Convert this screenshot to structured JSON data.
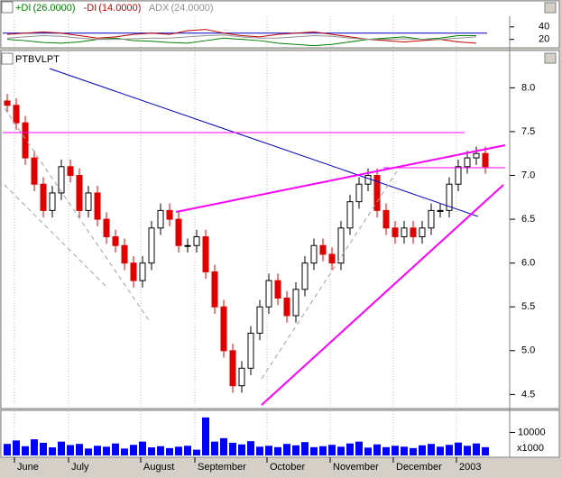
{
  "chart_data": {
    "type": "candlestick",
    "indicator": {
      "labels": [
        {
          "text": "+DI",
          "value_label": "(26.0000)"
        },
        {
          "text": "-DI",
          "value_label": "(14.0000)"
        },
        {
          "text": "ADX",
          "value_label": "(24.0000)"
        }
      ],
      "ylim": [
        8,
        57
      ],
      "yticks": [
        40,
        20
      ],
      "reference_line": 30,
      "series": [
        {
          "name": "+DI",
          "color": "#008000",
          "values": [
            20,
            18,
            15,
            14,
            16,
            20,
            22,
            18,
            17,
            15,
            14,
            18,
            22,
            20,
            18,
            14,
            12,
            10,
            12,
            16,
            20,
            22,
            24,
            20,
            22,
            26,
            26
          ]
        },
        {
          "name": "-DI",
          "color": "#c00000",
          "values": [
            28,
            30,
            32,
            30,
            26,
            22,
            24,
            28,
            30,
            28,
            34,
            36,
            30,
            26,
            24,
            28,
            30,
            32,
            28,
            24,
            20,
            18,
            16,
            18,
            20,
            16,
            14
          ]
        },
        {
          "name": "ADX",
          "color": "#909090",
          "values": [
            22,
            24,
            26,
            25,
            22,
            20,
            20,
            21,
            22,
            22,
            24,
            26,
            27,
            24,
            22,
            22,
            24,
            26,
            25,
            22,
            20,
            20,
            21,
            20,
            20,
            22,
            24
          ]
        }
      ]
    },
    "price": {
      "title": "PTBVLPT",
      "ylim": [
        4.35,
        8.23
      ],
      "yticks": [
        {
          "value": 8,
          "label": "8.0"
        },
        7.5,
        {
          "value": 7,
          "label": "7.0"
        },
        6.5,
        {
          "value": 6,
          "label": "6.0"
        },
        5.5,
        {
          "value": 5,
          "label": "5.0"
        },
        4.5
      ],
      "up_color": "#000000",
      "down_color": "#e00000",
      "open": [
        7.85,
        7.8,
        7.6,
        7.2,
        6.9,
        6.6,
        6.8,
        7.1,
        7.0,
        6.6,
        6.8,
        6.5,
        6.3,
        6.2,
        6.0,
        5.8,
        6.0,
        6.4,
        6.6,
        6.5,
        6.2,
        6.2,
        6.3,
        5.9,
        5.5,
        5.0,
        4.6,
        4.8,
        5.2,
        5.5,
        5.8,
        5.6,
        5.4,
        5.7,
        6.0,
        6.2,
        6.1,
        6.0,
        6.4,
        6.7,
        6.9,
        7.0,
        6.6,
        6.4,
        6.3,
        6.4,
        6.3,
        6.4,
        6.6,
        6.6,
        6.9,
        7.1,
        7.2,
        7.25
      ],
      "high": [
        7.93,
        7.88,
        7.68,
        7.28,
        6.98,
        6.88,
        7.18,
        7.18,
        7.08,
        6.88,
        6.88,
        6.58,
        6.38,
        6.28,
        6.08,
        6.08,
        6.48,
        6.68,
        6.68,
        6.58,
        6.28,
        6.38,
        6.38,
        5.98,
        5.58,
        5.08,
        4.88,
        5.28,
        5.58,
        5.88,
        5.88,
        5.68,
        5.78,
        6.08,
        6.28,
        6.28,
        6.18,
        6.48,
        6.78,
        6.98,
        7.08,
        7.08,
        6.68,
        6.48,
        6.48,
        6.48,
        6.48,
        6.68,
        6.68,
        6.98,
        7.18,
        7.28,
        7.33,
        7.33
      ],
      "low": [
        7.72,
        7.52,
        7.12,
        6.82,
        6.52,
        6.52,
        6.72,
        6.92,
        6.52,
        6.52,
        6.42,
        6.22,
        6.12,
        5.92,
        5.72,
        5.72,
        5.92,
        6.32,
        6.42,
        6.12,
        6.12,
        6.12,
        5.82,
        5.42,
        4.92,
        4.52,
        4.52,
        4.72,
        5.12,
        5.42,
        5.52,
        5.32,
        5.32,
        5.62,
        5.92,
        6.02,
        5.92,
        5.92,
        6.32,
        6.62,
        6.82,
        6.52,
        6.32,
        6.22,
        6.22,
        6.22,
        6.22,
        6.32,
        6.52,
        6.52,
        6.82,
        7.02,
        7.12,
        7.02
      ],
      "close": [
        7.8,
        7.6,
        7.2,
        6.9,
        6.6,
        6.8,
        7.1,
        7.0,
        6.6,
        6.8,
        6.5,
        6.3,
        6.2,
        6.0,
        5.8,
        6.0,
        6.4,
        6.6,
        6.5,
        6.2,
        6.2,
        6.3,
        5.9,
        5.5,
        5.0,
        4.6,
        4.8,
        5.2,
        5.5,
        5.8,
        5.6,
        5.4,
        5.7,
        6.0,
        6.2,
        6.1,
        6.0,
        6.4,
        6.7,
        6.9,
        7.0,
        6.6,
        6.4,
        6.3,
        6.4,
        6.3,
        6.4,
        6.6,
        6.6,
        6.9,
        7.1,
        7.2,
        7.25,
        7.1
      ]
    },
    "volume": {
      "color": "#0000ff",
      "ylim": [
        0,
        18000
      ],
      "yticks": [
        10000
      ],
      "unit_label": "x1000",
      "values": [
        5000,
        6500,
        4000,
        7000,
        5500,
        3500,
        6000,
        4500,
        5000,
        3000,
        4200,
        3800,
        5200,
        3000,
        4600,
        6000,
        3500,
        4000,
        3200,
        3800,
        4200,
        2500,
        16500,
        6000,
        7500,
        5500,
        4800,
        6200,
        3800,
        4200,
        3600,
        5000,
        4400,
        5800,
        3600,
        4000,
        4600,
        3800,
        5200,
        6000,
        3400,
        4800,
        3600,
        4200,
        3800,
        3200,
        4400,
        5000,
        3800,
        4600,
        5600,
        4200,
        5200,
        3600
      ]
    },
    "categories": [
      null,
      "June",
      null,
      null,
      null,
      null,
      null,
      "July",
      null,
      null,
      null,
      null,
      null,
      null,
      null,
      "August",
      null,
      null,
      null,
      null,
      null,
      "September",
      null,
      null,
      null,
      null,
      null,
      null,
      null,
      "October",
      null,
      null,
      null,
      null,
      null,
      null,
      "November",
      null,
      null,
      null,
      null,
      null,
      null,
      "December",
      null,
      null,
      null,
      null,
      null,
      null,
      "2003",
      null,
      null,
      null
    ]
  }
}
